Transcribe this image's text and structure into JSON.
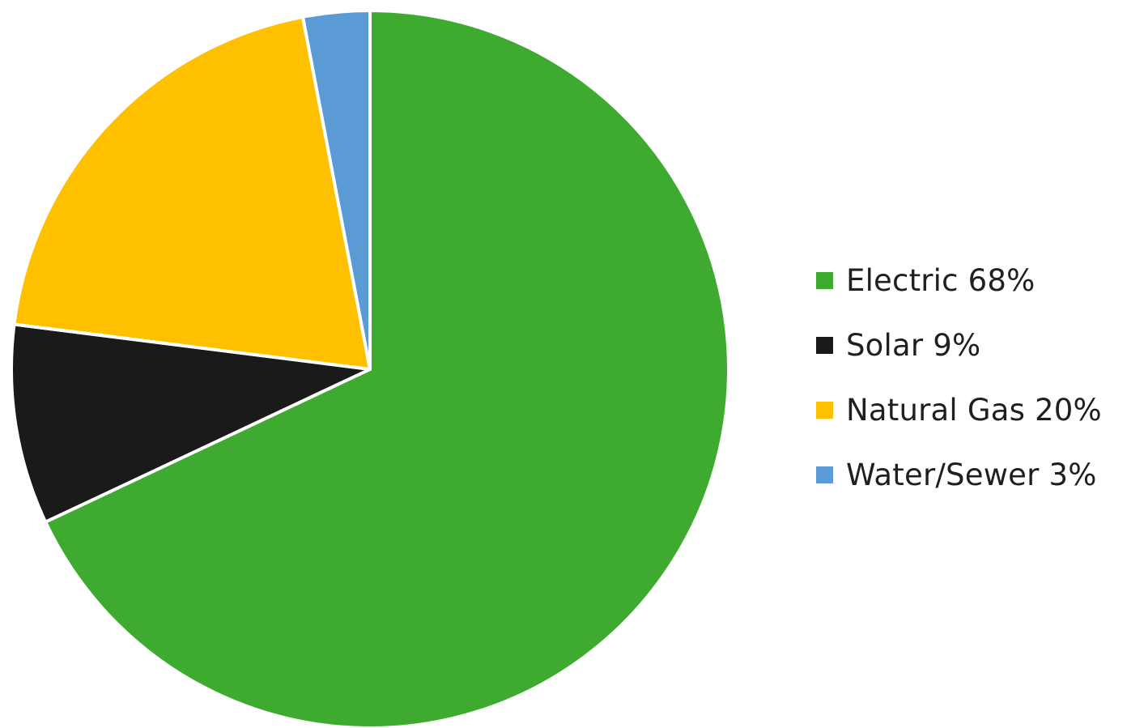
{
  "chart_data": {
    "type": "pie",
    "title": "",
    "start_angle_deg": 0,
    "direction": "clockwise",
    "legend_position": "right",
    "slices": [
      {
        "label": "Electric 68%",
        "category": "Electric",
        "value": 68,
        "color": "#3EAA30"
      },
      {
        "label": "Solar 9%",
        "category": "Solar",
        "value": 9,
        "color": "#1A1A1A"
      },
      {
        "label": "Natural Gas 20%",
        "category": "Natural Gas",
        "value": 20,
        "color": "#FFC000"
      },
      {
        "label": "Water/Sewer 3%",
        "category": "Water/Sewer",
        "value": 3,
        "color": "#5B9BD5"
      }
    ]
  }
}
